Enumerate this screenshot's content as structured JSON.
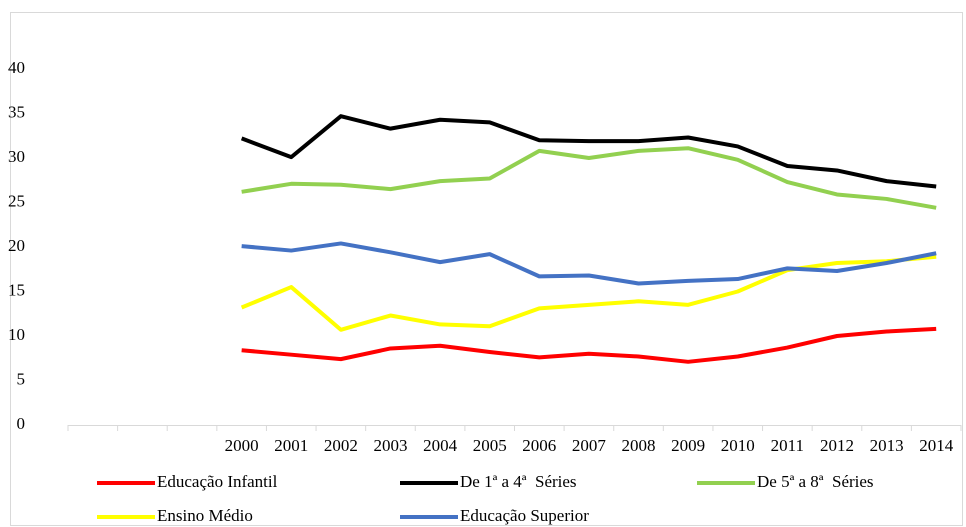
{
  "chart_data": {
    "type": "line",
    "categories": [
      null,
      null,
      null,
      "2000",
      "2001",
      "2002",
      "2003",
      "2004",
      "2005",
      "2006",
      "2007",
      "2008",
      "2009",
      "2010",
      "2011",
      "2012",
      "2013",
      "2014"
    ],
    "ylim": [
      0,
      40
    ],
    "yticks": [
      0,
      5,
      10,
      15,
      20,
      25,
      30,
      35,
      40
    ],
    "grid": false,
    "legend": "bottom",
    "series": [
      {
        "name": "Educação Infantil",
        "color": "#ff0000",
        "values": [
          null,
          null,
          null,
          8.4,
          7.9,
          7.4,
          8.6,
          8.9,
          8.2,
          7.6,
          8.0,
          7.7,
          7.1,
          7.7,
          8.7,
          10.0,
          10.5,
          10.8
        ]
      },
      {
        "name": "De 1ª a 4ª  Séries",
        "color": "#000000",
        "values": [
          null,
          null,
          null,
          32.2,
          30.1,
          34.7,
          33.3,
          34.3,
          34.0,
          32.0,
          31.9,
          31.9,
          32.3,
          31.3,
          29.1,
          28.6,
          27.4,
          26.8
        ]
      },
      {
        "name": "De 5ª a 8ª  Séries",
        "color": "#92d050",
        "values": [
          null,
          null,
          null,
          26.2,
          27.1,
          27.0,
          26.5,
          27.4,
          27.7,
          30.8,
          30.0,
          30.8,
          31.1,
          29.8,
          27.3,
          25.9,
          25.4,
          24.4
        ]
      },
      {
        "name": "Ensino Médio",
        "color": "#ffff00",
        "values": [
          null,
          null,
          null,
          13.2,
          15.5,
          10.7,
          12.3,
          11.3,
          11.1,
          13.1,
          13.5,
          13.9,
          13.5,
          15.0,
          17.4,
          18.2,
          18.4,
          18.9
        ]
      },
      {
        "name": "Educação Superior",
        "color": "#4472c4",
        "values": [
          null,
          null,
          null,
          20.1,
          19.6,
          20.4,
          19.4,
          18.3,
          19.2,
          16.7,
          16.8,
          15.9,
          16.2,
          16.4,
          17.6,
          17.3,
          18.2,
          19.3
        ]
      }
    ]
  }
}
